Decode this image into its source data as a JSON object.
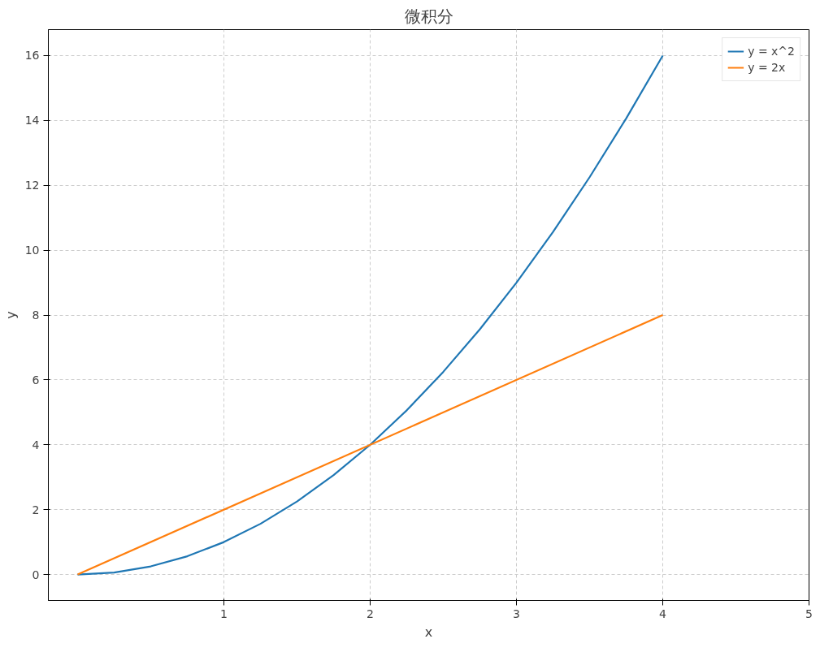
{
  "chart_data": {
    "type": "line",
    "title": "微积分",
    "xlabel": "x",
    "ylabel": "y",
    "xlim": [
      -0.2,
      5
    ],
    "xticks": [
      1,
      2,
      3,
      4,
      5
    ],
    "ylim": [
      -0.8,
      16.8
    ],
    "yticks": [
      0,
      2,
      4,
      6,
      8,
      10,
      12,
      14,
      16
    ],
    "grid": true,
    "legend": "top right",
    "line_style": "solid",
    "series": [
      {
        "name": "y = x^2",
        "color": "#1f77b4",
        "x": [
          0,
          0.25,
          0.5,
          0.75,
          1,
          1.25,
          1.5,
          1.75,
          2,
          2.25,
          2.5,
          2.75,
          3,
          3.25,
          3.5,
          3.75,
          4
        ],
        "values": [
          0,
          0.0625,
          0.25,
          0.5625,
          1,
          1.5625,
          2.25,
          3.0625,
          4,
          5.0625,
          6.25,
          7.5625,
          9,
          10.5625,
          12.25,
          14.0625,
          16
        ]
      },
      {
        "name": "y = 2x",
        "color": "#ff7f0e",
        "x": [
          0,
          4
        ],
        "values": [
          0,
          8
        ]
      }
    ]
  }
}
